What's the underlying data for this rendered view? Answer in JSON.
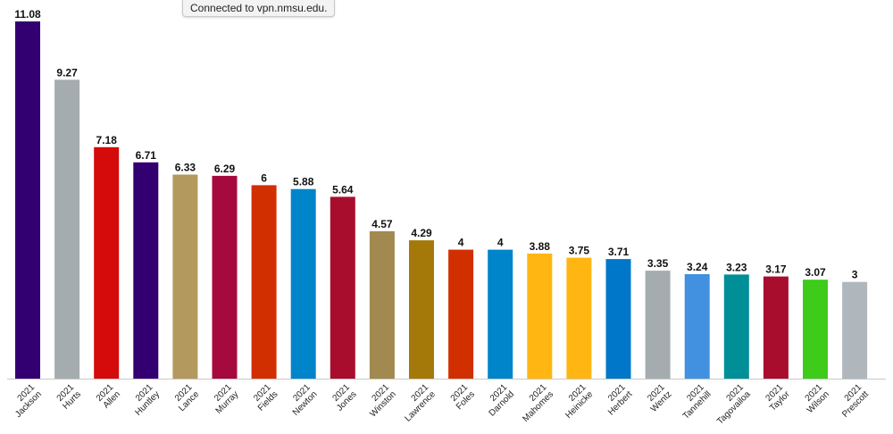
{
  "tooltip": "Connected to vpn.nmsu.edu.",
  "chart_data": {
    "type": "bar",
    "categories": [
      [
        "2021",
        "Jackson"
      ],
      [
        "2021",
        "Hurts"
      ],
      [
        "2021",
        "Allen"
      ],
      [
        "2021",
        "Huntley"
      ],
      [
        "2021",
        "Lance"
      ],
      [
        "2021",
        "Murray"
      ],
      [
        "2021",
        "Fields"
      ],
      [
        "2021",
        "Newton"
      ],
      [
        "2021",
        "Jones"
      ],
      [
        "2021",
        "Winston"
      ],
      [
        "2021",
        "Lawrence"
      ],
      [
        "2021",
        "Foles"
      ],
      [
        "2021",
        "Darnold"
      ],
      [
        "2021",
        "Mahomes"
      ],
      [
        "2021",
        "Heinicke"
      ],
      [
        "2021",
        "Herbert"
      ],
      [
        "2021",
        "Wentz"
      ],
      [
        "2021",
        "Tannehill"
      ],
      [
        "2021",
        "Tagovailoa"
      ],
      [
        "2021",
        "Taylor"
      ],
      [
        "2021",
        "Wilson"
      ],
      [
        "2021",
        "Prescott"
      ]
    ],
    "values": [
      11.08,
      9.27,
      7.18,
      6.71,
      6.33,
      6.29,
      6,
      5.88,
      5.64,
      4.57,
      4.29,
      4,
      4,
      3.88,
      3.75,
      3.71,
      3.35,
      3.24,
      3.23,
      3.17,
      3.07,
      3
    ],
    "value_labels": [
      "11.08",
      "9.27",
      "7.18",
      "6.71",
      "6.33",
      "6.29",
      "6",
      "5.88",
      "5.64",
      "4.57",
      "4.29",
      "4",
      "4",
      "3.88",
      "3.75",
      "3.71",
      "3.35",
      "3.24",
      "3.23",
      "3.17",
      "3.07",
      "3"
    ],
    "colors": [
      "#330072",
      "#a5acaf",
      "#d50a0a",
      "#330072",
      "#b3995d",
      "#a6093d",
      "#d22f00",
      "#0085ca",
      "#a80d2d",
      "#a1894f",
      "#a4790a",
      "#d22f00",
      "#0085ca",
      "#ffb612",
      "#ffb612",
      "#0077c8",
      "#a5acaf",
      "#4191e0",
      "#008e97",
      "#a80d2d",
      "#3ecb1a",
      "#b0b7bc"
    ],
    "title": "",
    "xlabel": "",
    "ylabel": "",
    "ylim": [
      0,
      11.08
    ],
    "grid": false,
    "legend": "none"
  }
}
